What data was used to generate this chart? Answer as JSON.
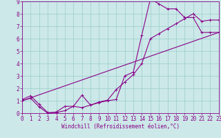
{
  "xlabel": "Windchill (Refroidissement éolien,°C)",
  "bg_color": "#cce8e8",
  "grid_color": "#99cccc",
  "line_color": "#880088",
  "spine_color": "#880088",
  "tick_color": "#880088",
  "label_color": "#880088",
  "xlim": [
    0,
    23
  ],
  "ylim": [
    0,
    9
  ],
  "xticks": [
    0,
    1,
    2,
    3,
    4,
    5,
    6,
    7,
    8,
    9,
    10,
    11,
    12,
    13,
    14,
    15,
    16,
    17,
    18,
    19,
    20,
    21,
    22,
    23
  ],
  "yticks": [
    0,
    1,
    2,
    3,
    4,
    5,
    6,
    7,
    8,
    9
  ],
  "series1_x": [
    0,
    1,
    2,
    3,
    4,
    5,
    6,
    7,
    8,
    9,
    10,
    11,
    12,
    13,
    14,
    15,
    16,
    17,
    18,
    19,
    20,
    21,
    22,
    23
  ],
  "series1_y": [
    1.1,
    1.4,
    0.7,
    0.05,
    0.05,
    0.2,
    0.55,
    1.45,
    0.65,
    0.85,
    1.0,
    1.1,
    3.0,
    3.3,
    6.3,
    9.2,
    8.8,
    8.4,
    8.4,
    7.7,
    7.7,
    6.5,
    6.5,
    6.5
  ],
  "series2_x": [
    0,
    1,
    2,
    3,
    4,
    5,
    6,
    7,
    8,
    9,
    10,
    11,
    12,
    13,
    14,
    15,
    16,
    17,
    18,
    19,
    20,
    21,
    22,
    23
  ],
  "series2_y": [
    1.0,
    1.2,
    0.5,
    0.0,
    0.1,
    0.55,
    0.55,
    0.45,
    0.65,
    0.9,
    1.05,
    1.9,
    2.5,
    3.1,
    4.0,
    6.0,
    6.4,
    6.8,
    7.2,
    7.6,
    8.0,
    7.4,
    7.5,
    7.5
  ],
  "series3_x": [
    0,
    23
  ],
  "series3_y": [
    1.0,
    6.5
  ],
  "xlabel_fontsize": 5.5,
  "tick_fontsize": 5.5
}
